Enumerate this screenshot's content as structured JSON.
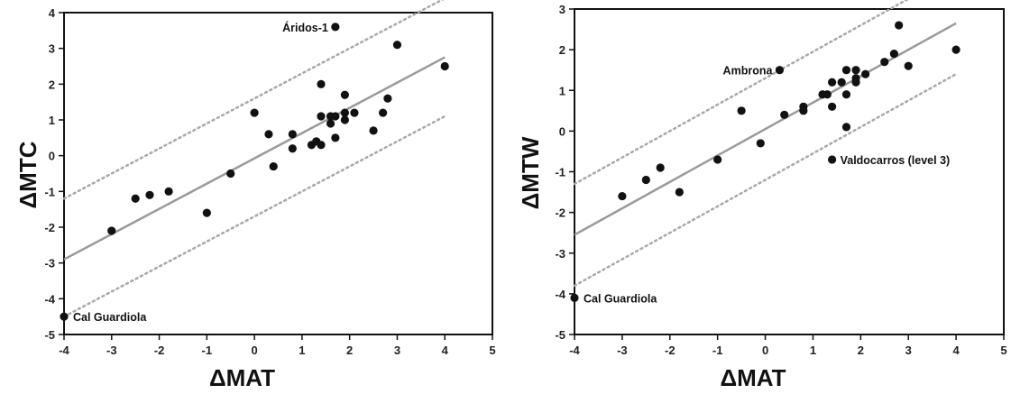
{
  "chart_data": [
    {
      "type": "scatter",
      "xlabel": "ΔMAT",
      "ylabel": "ΔMTC",
      "xlim": [
        -4,
        5
      ],
      "ylim": [
        -5,
        4
      ],
      "xticks": [
        "-4",
        "-3",
        "-2",
        "-1",
        "0",
        "1",
        "2",
        "3",
        "4",
        "5"
      ],
      "yticks": [
        "-5",
        "-4",
        "-3",
        "-2",
        "-1",
        "0",
        "1",
        "2",
        "3",
        "4"
      ],
      "regression": {
        "x": [
          -4,
          4
        ],
        "y": [
          -2.9,
          2.75
        ]
      },
      "bounds": [
        {
          "x": [
            -4,
            4
          ],
          "y": [
            -1.2,
            4.4
          ]
        },
        {
          "x": [
            -4,
            4
          ],
          "y": [
            -4.5,
            1.1
          ]
        }
      ],
      "points": [
        {
          "x": -4.0,
          "y": -4.5,
          "label": "Cal Guardiola"
        },
        {
          "x": -3.0,
          "y": -2.1
        },
        {
          "x": -2.5,
          "y": -1.2
        },
        {
          "x": -2.2,
          "y": -1.1
        },
        {
          "x": -1.8,
          "y": -1.0
        },
        {
          "x": -1.0,
          "y": -1.6
        },
        {
          "x": -0.5,
          "y": -0.5
        },
        {
          "x": 0.0,
          "y": 1.2
        },
        {
          "x": 0.3,
          "y": 0.6
        },
        {
          "x": 0.4,
          "y": -0.3
        },
        {
          "x": 0.8,
          "y": 0.6
        },
        {
          "x": 0.8,
          "y": 0.2
        },
        {
          "x": 1.2,
          "y": 0.3
        },
        {
          "x": 1.3,
          "y": 0.4
        },
        {
          "x": 1.4,
          "y": 0.3
        },
        {
          "x": 1.4,
          "y": 1.1
        },
        {
          "x": 1.4,
          "y": 2.0
        },
        {
          "x": 1.6,
          "y": 1.1
        },
        {
          "x": 1.6,
          "y": 0.9
        },
        {
          "x": 1.7,
          "y": 1.1
        },
        {
          "x": 1.7,
          "y": 0.5
        },
        {
          "x": 1.9,
          "y": 1.2
        },
        {
          "x": 1.9,
          "y": 1.0
        },
        {
          "x": 1.9,
          "y": 1.7
        },
        {
          "x": 2.1,
          "y": 1.2
        },
        {
          "x": 1.7,
          "y": 3.6,
          "label": "Áridos-1"
        },
        {
          "x": 2.5,
          "y": 0.7
        },
        {
          "x": 2.7,
          "y": 1.2
        },
        {
          "x": 2.8,
          "y": 1.6
        },
        {
          "x": 3.0,
          "y": 3.1
        },
        {
          "x": 4.0,
          "y": 2.5
        }
      ]
    },
    {
      "type": "scatter",
      "xlabel": "ΔMAT",
      "ylabel": "ΔMTW",
      "xlim": [
        -4,
        5
      ],
      "ylim": [
        -5,
        3
      ],
      "xticks": [
        "-4",
        "-3",
        "-2",
        "-1",
        "0",
        "1",
        "2",
        "3",
        "4",
        "5"
      ],
      "yticks": [
        "-5",
        "-4",
        "-3",
        "-2",
        "-1",
        "0",
        "1",
        "2",
        "3"
      ],
      "regression": {
        "x": [
          -4,
          4
        ],
        "y": [
          -2.55,
          2.65
        ]
      },
      "bounds": [
        {
          "x": [
            -4,
            4
          ],
          "y": [
            -1.3,
            3.9
          ]
        },
        {
          "x": [
            -4,
            4
          ],
          "y": [
            -3.8,
            1.4
          ]
        }
      ],
      "points": [
        {
          "x": -4.0,
          "y": -4.1,
          "label": "Cal Guardiola"
        },
        {
          "x": -3.0,
          "y": -1.6
        },
        {
          "x": -2.5,
          "y": -1.2
        },
        {
          "x": -2.2,
          "y": -0.9
        },
        {
          "x": -1.8,
          "y": -1.5
        },
        {
          "x": -1.0,
          "y": -0.7
        },
        {
          "x": -0.5,
          "y": 0.5
        },
        {
          "x": -0.1,
          "y": -0.3
        },
        {
          "x": 0.3,
          "y": 1.5,
          "label": "Ambrona"
        },
        {
          "x": 0.4,
          "y": 0.4
        },
        {
          "x": 0.8,
          "y": 0.6
        },
        {
          "x": 0.8,
          "y": 0.5
        },
        {
          "x": 1.2,
          "y": 0.9
        },
        {
          "x": 1.3,
          "y": 0.9
        },
        {
          "x": 1.4,
          "y": 1.2
        },
        {
          "x": 1.4,
          "y": 0.6
        },
        {
          "x": 1.4,
          "y": -0.7,
          "label": "Valdocarros (level 3)"
        },
        {
          "x": 1.6,
          "y": 1.2
        },
        {
          "x": 1.7,
          "y": 1.5
        },
        {
          "x": 1.7,
          "y": 0.9
        },
        {
          "x": 1.7,
          "y": 0.1
        },
        {
          "x": 1.9,
          "y": 1.5
        },
        {
          "x": 1.9,
          "y": 1.3
        },
        {
          "x": 1.9,
          "y": 1.2
        },
        {
          "x": 2.1,
          "y": 1.4
        },
        {
          "x": 2.5,
          "y": 1.7
        },
        {
          "x": 2.7,
          "y": 1.9
        },
        {
          "x": 2.8,
          "y": 2.6
        },
        {
          "x": 3.0,
          "y": 1.6
        },
        {
          "x": 4.0,
          "y": 2.0
        }
      ]
    }
  ],
  "colors": {
    "points": "#111111",
    "regression": "#9a9a9a",
    "bounds": "#a8a8a8",
    "axis": "#111111"
  }
}
